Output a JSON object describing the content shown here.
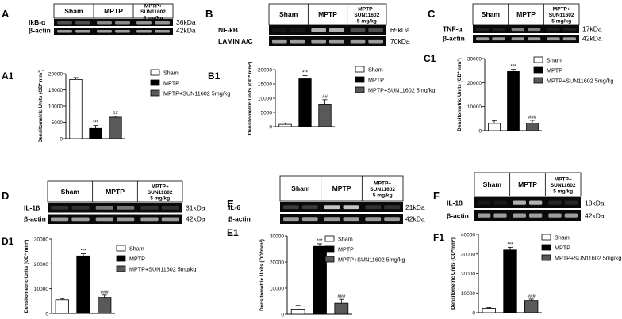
{
  "figure": {
    "groups": [
      "Sham",
      "MPTP",
      "MPTP+\nSUN11602\n5 mg/kg"
    ],
    "loading_control": "β-actin",
    "ylabel_main": "Densitometric Units (OD* mm²)",
    "legend": [
      "Sham",
      "MPTP",
      "MPTP+SUN11602 5mg/kg"
    ],
    "colors": {
      "sham": "#ffffff",
      "mptp": "#000000",
      "sun": "#595959",
      "blot_bg": "#0a0a0a",
      "band": "#cfcfcf"
    }
  },
  "chart_data": [
    {
      "panel": "A",
      "subpanel": "A1",
      "protein": "IkB-α",
      "kda": "36kDa",
      "control_kda": "42kDa",
      "type": "bar",
      "categories": [
        "Sham",
        "MPTP",
        "MPTP+SUN11602 5mg/kg"
      ],
      "values": [
        18200,
        3100,
        6600
      ],
      "errors": [
        600,
        900,
        300
      ],
      "sig": [
        "",
        "***",
        "##"
      ],
      "ylim": [
        0,
        20000
      ],
      "ticks": [
        0,
        5000,
        10000,
        15000,
        20000
      ],
      "ylabel": "Densitometric Units (OD* mm²)"
    },
    {
      "panel": "B",
      "subpanel": "B1",
      "protein": "NF-kB",
      "kda": "65kDa",
      "control": "LAMIN A/C",
      "control_kda": "70kDa",
      "type": "bar",
      "categories": [
        "Sham",
        "MPTP",
        "MPTP+SUN11602 5mg/kg"
      ],
      "values": [
        800,
        16800,
        7700
      ],
      "errors": [
        500,
        1100,
        1800
      ],
      "sig": [
        "",
        "***",
        "##"
      ],
      "ylim": [
        0,
        20000
      ],
      "ticks": [
        0,
        5000,
        10000,
        15000,
        20000
      ],
      "ylabel": "Densitometric Units (OD* mm²)"
    },
    {
      "panel": "C",
      "subpanel": "C1",
      "protein": "TNF-α",
      "kda": "17kDa",
      "control_kda": "42kDa",
      "type": "bar",
      "categories": [
        "Sham",
        "MPTP",
        "MPTP+SUN11602 5mg/kg"
      ],
      "values": [
        3000,
        24600,
        3100
      ],
      "errors": [
        1200,
        900,
        1200
      ],
      "sig": [
        "",
        "***",
        "###"
      ],
      "ylim": [
        0,
        30000
      ],
      "ticks": [
        0,
        10000,
        20000,
        30000
      ],
      "ylabel": "Densitometric Units (OD* mm²)"
    },
    {
      "panel": "D",
      "subpanel": "D1",
      "protein": "IL-1β",
      "kda": "31kDa",
      "control_kda": "42kDa",
      "type": "bar",
      "categories": [
        "Sham",
        "MPTP",
        "MPTP+SUN11602 5mg/kg"
      ],
      "values": [
        5500,
        23200,
        6500
      ],
      "errors": [
        500,
        900,
        900
      ],
      "sig": [
        "",
        "***",
        "###"
      ],
      "ylim": [
        0,
        30000
      ],
      "ticks": [
        0,
        10000,
        20000,
        30000
      ],
      "ylabel": "Densitometric Units (OD* mm²)"
    },
    {
      "panel": "E",
      "subpanel": "E1",
      "protein": "IL-6",
      "kda": "21kDa",
      "control_kda": "42kDa",
      "type": "bar",
      "categories": [
        "Sham",
        "MPTP",
        "MPTP+SUN11602 5mg/kg"
      ],
      "values": [
        2000,
        26000,
        4200
      ],
      "errors": [
        1400,
        1000,
        1500
      ],
      "sig": [
        "",
        "***",
        "###"
      ],
      "ylim": [
        0,
        30000
      ],
      "ticks": [
        0,
        10000,
        20000,
        30000
      ],
      "ylabel": "Densitometric Units (OD*mm²)"
    },
    {
      "panel": "F",
      "subpanel": "F1",
      "protein": "IL-18",
      "kda": "18kDa",
      "control_kda": "42kDa",
      "type": "bar",
      "categories": [
        "Sham",
        "MPTP",
        "MPTP+SUN11602 5mg/kg"
      ],
      "values": [
        2200,
        32000,
        6200
      ],
      "errors": [
        400,
        1400,
        700
      ],
      "sig": [
        "",
        "***",
        "###"
      ],
      "ylim": [
        0,
        40000
      ],
      "ticks": [
        0,
        10000,
        20000,
        30000,
        40000
      ],
      "ylabel": "Densitometric Units (OD*mm²)"
    }
  ]
}
